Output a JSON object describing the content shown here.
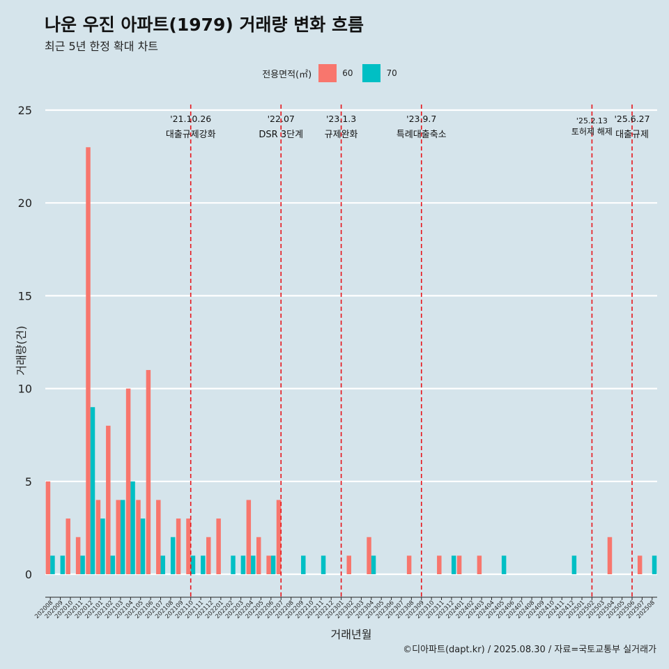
{
  "title": "나운 우진 아파트(1979) 거래량 변화 흐름",
  "subtitle": "최근 5년 한정 확대 차트",
  "caption": "©디아파트(dapt.kr) / 2025.08.30 / 자료=국토교통부 실거래가",
  "legend": {
    "title": "전용면적(㎡)",
    "items": [
      {
        "label": "60",
        "color": "#F8766D"
      },
      {
        "label": "70",
        "color": "#00BFC4"
      }
    ]
  },
  "chart_data": {
    "type": "bar",
    "xlabel": "거래년월",
    "ylabel": "거래량(건)",
    "ylim": [
      0,
      25
    ],
    "yticks": [
      0,
      5,
      10,
      15,
      20,
      25
    ],
    "categories": [
      "202008",
      "202009",
      "202010",
      "202011",
      "202012",
      "202101",
      "202102",
      "202103",
      "202104",
      "202105",
      "202106",
      "202107",
      "202108",
      "202109",
      "202110",
      "202111",
      "202112",
      "202201",
      "202202",
      "202203",
      "202204",
      "202205",
      "202206",
      "202207",
      "202208",
      "202209",
      "202210",
      "202211",
      "202212",
      "202301",
      "202302",
      "202303",
      "202304",
      "202305",
      "202306",
      "202307",
      "202308",
      "202309",
      "202310",
      "202311",
      "202312",
      "202401",
      "202402",
      "202403",
      "202404",
      "202405",
      "202406",
      "202407",
      "202408",
      "202409",
      "202410",
      "202411",
      "202412",
      "202501",
      "202502",
      "202503",
      "202504",
      "202505",
      "202506",
      "202507",
      "202508"
    ],
    "series": [
      {
        "name": "60",
        "color": "#F8766D",
        "values": [
          5,
          0,
          3,
          2,
          23,
          4,
          8,
          4,
          10,
          4,
          11,
          4,
          0,
          3,
          3,
          0,
          2,
          3,
          0,
          0,
          4,
          2,
          1,
          4,
          0,
          0,
          0,
          0,
          0,
          0,
          1,
          0,
          2,
          0,
          0,
          0,
          1,
          0,
          0,
          1,
          0,
          1,
          0,
          1,
          0,
          0,
          0,
          0,
          0,
          0,
          0,
          0,
          0,
          0,
          0,
          0,
          2,
          0,
          0,
          1,
          0
        ]
      },
      {
        "name": "70",
        "color": "#00BFC4",
        "values": [
          1,
          1,
          0,
          1,
          9,
          3,
          1,
          4,
          5,
          3,
          0,
          1,
          2,
          0,
          1,
          1,
          0,
          0,
          1,
          1,
          1,
          0,
          1,
          0,
          0,
          1,
          0,
          1,
          0,
          0,
          0,
          0,
          1,
          0,
          0,
          0,
          0,
          0,
          0,
          0,
          1,
          0,
          0,
          0,
          0,
          1,
          0,
          0,
          0,
          0,
          0,
          0,
          1,
          0,
          0,
          0,
          0,
          0,
          0,
          0,
          1
        ]
      }
    ],
    "annotations": [
      {
        "category": "202110",
        "date": "'21.10.26",
        "label": "대출규제강화"
      },
      {
        "category": "202207",
        "date": "'22.07",
        "label": "DSR 3단계"
      },
      {
        "category": "202301",
        "date": "'23.1.3",
        "label": "규제완화"
      },
      {
        "category": "202309",
        "date": "'23.9.7",
        "label": "특례대출축소"
      },
      {
        "category": "202502",
        "date": "'25.2.13",
        "label": "토허제 해제"
      },
      {
        "category": "202506",
        "date": "'25.6.27",
        "label": "대출규제"
      }
    ],
    "grid": true,
    "legend_position": "top"
  }
}
